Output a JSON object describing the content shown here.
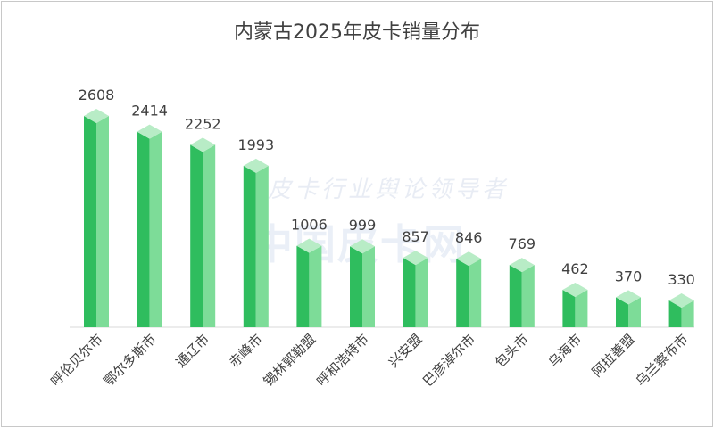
{
  "chart_data": {
    "type": "bar",
    "title": "内蒙古2025年皮卡销量分布",
    "categories": [
      "呼伦贝尔市",
      "鄂尔多斯市",
      "通辽市",
      "赤峰市",
      "锡林郭勒盟",
      "呼和浩特市",
      "兴安盟",
      "巴彦淖尔市",
      "包头市",
      "乌海市",
      "阿拉善盟",
      "乌兰察布市"
    ],
    "values": [
      2608,
      2414,
      2252,
      1993,
      1006,
      999,
      857,
      846,
      769,
      462,
      370,
      330
    ],
    "ylim": [
      0,
      2608
    ],
    "grid": false,
    "legend": "none",
    "colors": {
      "dark": "#2fbd5e",
      "light": "#7ddc98",
      "top": "#b8ecc6"
    }
  },
  "watermark": {
    "line1": "皮卡行业舆论领导者",
    "line2": "中国皮卡网"
  }
}
